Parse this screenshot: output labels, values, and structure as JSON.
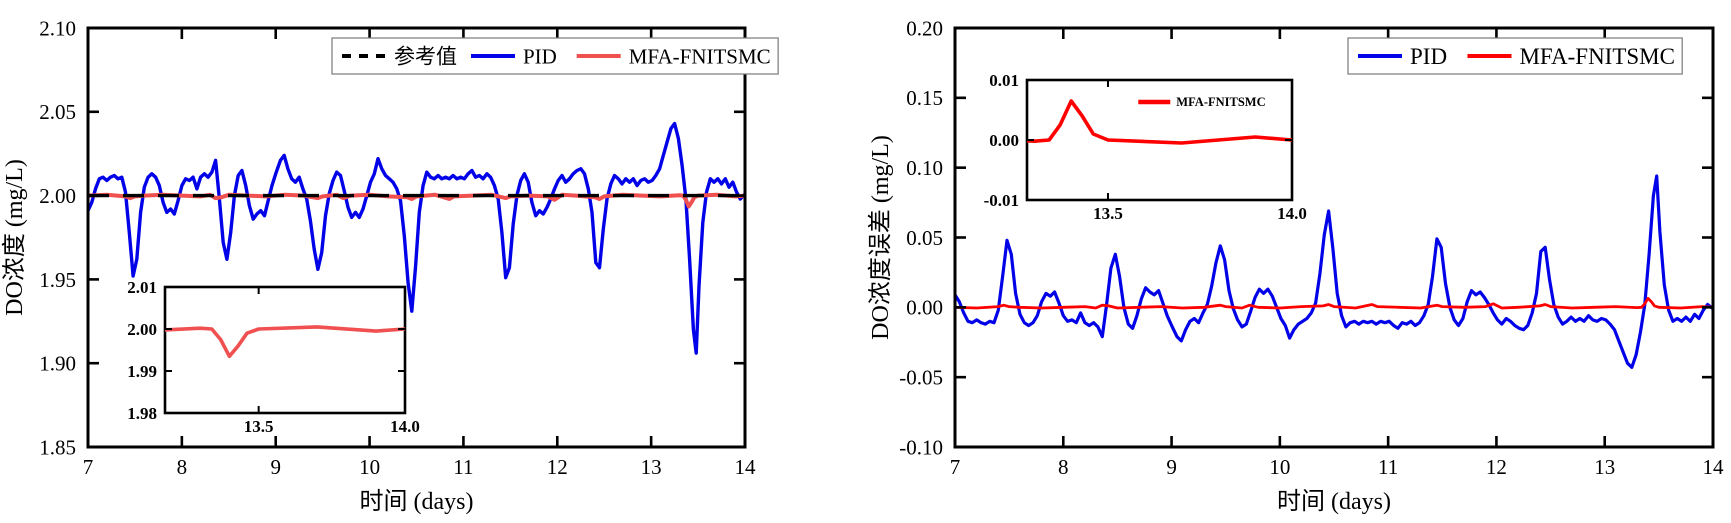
{
  "figure": {
    "background": "#ffffff"
  },
  "colors": {
    "pid_blue": "#0202e8",
    "mfa_red_left": "#f05050",
    "mfa_red_right": "#ff0000",
    "reference_black": "#000000"
  },
  "shared": {
    "t_pid": [
      7.0,
      7.04,
      7.08,
      7.12,
      7.16,
      7.2,
      7.24,
      7.28,
      7.32,
      7.36,
      7.4,
      7.44,
      7.48,
      7.52,
      7.56,
      7.6,
      7.64,
      7.68,
      7.72,
      7.76,
      7.8,
      7.84,
      7.88,
      7.92,
      7.96,
      8.0,
      8.04,
      8.08,
      8.12,
      8.16,
      8.2,
      8.24,
      8.28,
      8.32,
      8.36,
      8.4,
      8.44,
      8.48,
      8.52,
      8.56,
      8.6,
      8.64,
      8.68,
      8.72,
      8.76,
      8.8,
      8.84,
      8.88,
      8.92,
      8.96,
      9.0,
      9.05,
      9.09,
      9.13,
      9.17,
      9.21,
      9.25,
      9.29,
      9.33,
      9.37,
      9.41,
      9.45,
      9.49,
      9.53,
      9.57,
      9.61,
      9.65,
      9.69,
      9.73,
      9.77,
      9.81,
      9.85,
      9.89,
      9.93,
      9.97,
      10.01,
      10.05,
      10.09,
      10.13,
      10.17,
      10.21,
      10.25,
      10.29,
      10.33,
      10.37,
      10.41,
      10.45,
      10.49,
      10.53,
      10.57,
      10.61,
      10.65,
      10.69,
      10.73,
      10.77,
      10.81,
      10.85,
      10.89,
      10.93,
      10.97,
      11.01,
      11.05,
      11.09,
      11.13,
      11.17,
      11.21,
      11.25,
      11.29,
      11.33,
      11.37,
      11.41,
      11.45,
      11.49,
      11.53,
      11.57,
      11.61,
      11.65,
      11.69,
      11.73,
      11.77,
      11.81,
      11.85,
      11.89,
      11.93,
      11.97,
      12.01,
      12.05,
      12.09,
      12.13,
      12.17,
      12.21,
      12.25,
      12.29,
      12.33,
      12.37,
      12.41,
      12.45,
      12.49,
      12.53,
      12.57,
      12.61,
      12.65,
      12.69,
      12.73,
      12.77,
      12.81,
      12.85,
      12.89,
      12.93,
      12.97,
      13.01,
      13.05,
      13.09,
      13.13,
      13.17,
      13.21,
      13.25,
      13.29,
      13.33,
      13.37,
      13.41,
      13.45,
      13.48,
      13.51,
      13.55,
      13.59,
      13.63,
      13.67,
      13.71,
      13.75,
      13.79,
      13.83,
      13.87,
      13.91,
      13.95,
      14.0
    ],
    "t_mfa": [
      7.0,
      7.2,
      7.4,
      7.45,
      7.5,
      7.6,
      7.8,
      8.0,
      8.2,
      8.3,
      8.36,
      8.42,
      8.5,
      8.7,
      8.9,
      9.1,
      9.3,
      9.45,
      9.5,
      9.65,
      9.72,
      9.8,
      10.0,
      10.2,
      10.4,
      10.45,
      10.5,
      10.7,
      10.85,
      10.9,
      11.1,
      11.3,
      11.45,
      11.5,
      11.7,
      11.9,
      11.97,
      12.05,
      12.2,
      12.4,
      12.45,
      12.5,
      12.7,
      12.9,
      13.1,
      13.3,
      13.34,
      13.37,
      13.4,
      13.43,
      13.46,
      13.5,
      13.7,
      13.9,
      14.0
    ]
  },
  "chart_data": [
    {
      "type": "line",
      "title": "",
      "xlabel": "时间 (days)",
      "ylabel": "DO浓度 (mg/L)",
      "xlim": [
        7,
        14
      ],
      "ylim": [
        1.85,
        2.1
      ],
      "xticks": [
        7,
        8,
        9,
        10,
        11,
        12,
        13,
        14
      ],
      "xtick_labels": [
        "7",
        "8",
        "9",
        "10",
        "11",
        "12",
        "13",
        "14"
      ],
      "yticks": [
        1.85,
        1.9,
        1.95,
        2.0,
        2.05,
        2.1
      ],
      "ytick_labels": [
        "1.85",
        "1.90",
        "1.95",
        "2.00",
        "2.05",
        "2.10"
      ],
      "grid": false,
      "legend": {
        "position": "top-right-inside",
        "entries": [
          {
            "label": "参考值",
            "color": "#000000",
            "dash": true
          },
          {
            "label": "PID",
            "color": "#0202e8",
            "dash": false
          },
          {
            "label": "MFA-FNITSMC",
            "color": "#f05050",
            "dash": false
          }
        ]
      },
      "series": [
        {
          "name": "PID",
          "color": "#0202e8",
          "width": 3.4,
          "x_key": "t_pid",
          "y": [
            1.991,
            1.996,
            2.004,
            2.01,
            2.011,
            2.009,
            2.011,
            2.012,
            2.01,
            2.011,
            2.002,
            1.978,
            1.952,
            1.962,
            1.99,
            2.005,
            2.011,
            2.013,
            2.011,
            2.006,
            1.996,
            1.99,
            1.992,
            1.989,
            1.997,
            2.006,
            2.01,
            2.009,
            2.011,
            2.004,
            2.011,
            2.013,
            2.011,
            2.014,
            2.021,
            1.998,
            1.972,
            1.962,
            1.978,
            2.0,
            2.012,
            2.015,
            2.006,
            1.994,
            1.986,
            1.989,
            1.991,
            1.988,
            1.997,
            2.006,
            2.013,
            2.021,
            2.024,
            2.016,
            2.01,
            2.008,
            2.011,
            2.004,
            1.998,
            1.985,
            1.968,
            1.956,
            1.966,
            1.988,
            2.001,
            2.009,
            2.014,
            2.012,
            2.003,
            1.993,
            1.987,
            1.99,
            1.987,
            1.992,
            2.0,
            2.008,
            2.013,
            2.022,
            2.016,
            2.012,
            2.01,
            2.008,
            2.004,
            1.997,
            1.976,
            1.948,
            1.931,
            1.958,
            1.99,
            2.006,
            2.014,
            2.011,
            2.01,
            2.012,
            2.01,
            2.011,
            2.01,
            2.012,
            2.01,
            2.011,
            2.01,
            2.013,
            2.015,
            2.011,
            2.012,
            2.01,
            2.013,
            2.011,
            2.006,
            1.998,
            1.978,
            1.951,
            1.957,
            1.983,
            2.0,
            2.009,
            2.013,
            2.008,
            1.996,
            1.988,
            1.991,
            1.989,
            1.993,
            1.998,
            2.004,
            2.009,
            2.012,
            2.008,
            2.01,
            2.013,
            2.015,
            2.016,
            2.013,
            2.004,
            1.99,
            1.96,
            1.957,
            1.98,
            1.998,
            2.007,
            2.012,
            2.01,
            2.007,
            2.01,
            2.008,
            2.01,
            2.006,
            2.009,
            2.01,
            2.008,
            2.009,
            2.012,
            2.016,
            2.024,
            2.032,
            2.04,
            2.043,
            2.034,
            2.018,
            1.998,
            1.962,
            1.92,
            1.906,
            1.946,
            1.984,
            2.002,
            2.01,
            2.008,
            2.01,
            2.007,
            2.01,
            2.005,
            2.008,
            2.002,
            1.998,
            2.001
          ]
        },
        {
          "name": "MFA-FNITSMC",
          "color": "#f05050",
          "width": 4,
          "x_key": "t_mfa",
          "y": [
            2.0,
            2.0005,
            1.9995,
            1.9985,
            1.9995,
            2.0,
            2.0005,
            2.0,
            1.9995,
            2.0005,
            1.9985,
            1.999,
            2.0005,
            2.0,
            1.9995,
            2.0005,
            2.0,
            1.9985,
            1.9995,
            2.0005,
            1.9985,
            2.0,
            2.0005,
            1.9995,
            1.999,
            1.998,
            1.9995,
            2.0005,
            1.998,
            1.9995,
            2.0,
            2.0005,
            1.9985,
            1.9995,
            2.0,
            1.9995,
            1.9975,
            2.0005,
            2.0,
            1.999,
            1.998,
            1.9995,
            2.0005,
            2.0,
            1.9995,
            2.0002,
            2.0,
            1.9975,
            1.9935,
            1.996,
            1.999,
            2.0,
            2.0005,
            1.9995,
            2.0
          ]
        },
        {
          "name": "参考值",
          "color": "#000000",
          "width": 3.4,
          "dash": true,
          "constant": 2.0
        }
      ],
      "inset": {
        "xlim": [
          13.18,
          14.0
        ],
        "ylim": [
          1.98,
          2.01
        ],
        "xticks": [
          13.5,
          14.0
        ],
        "xtick_labels": [
          "13.5",
          "14.0"
        ],
        "yticks": [
          1.98,
          1.99,
          2.0,
          2.01
        ],
        "ytick_labels": [
          "1.98",
          "1.99",
          "2.00",
          "2.01"
        ],
        "series_index": 1
      }
    },
    {
      "type": "line",
      "title": "",
      "xlabel": "时间 (days)",
      "ylabel": "DO浓度误差 (mg/L)",
      "xlim": [
        7,
        14
      ],
      "ylim": [
        -0.1,
        0.2
      ],
      "xticks": [
        7,
        8,
        9,
        10,
        11,
        12,
        13,
        14
      ],
      "xtick_labels": [
        "7",
        "8",
        "9",
        "10",
        "11",
        "12",
        "13",
        "14"
      ],
      "yticks": [
        -0.1,
        -0.05,
        0.0,
        0.05,
        0.1,
        0.15,
        0.2
      ],
      "ytick_labels": [
        "-0.10",
        "-0.05",
        "0.00",
        "0.05",
        "0.10",
        "0.15",
        "0.20"
      ],
      "grid": false,
      "legend": {
        "position": "top-right-inside",
        "entries": [
          {
            "label": "PID",
            "color": "#0202e8",
            "dash": false
          },
          {
            "label": "MFA-FNITSMC",
            "color": "#ff0000",
            "dash": false
          }
        ]
      },
      "series": [
        {
          "name": "PID",
          "color": "#0202e8",
          "width": 3.2,
          "x_key": "t_pid",
          "y": [
            0.009,
            0.004,
            -0.004,
            -0.01,
            -0.011,
            -0.009,
            -0.011,
            -0.012,
            -0.01,
            -0.011,
            -0.002,
            0.022,
            0.048,
            0.038,
            0.01,
            -0.005,
            -0.011,
            -0.013,
            -0.011,
            -0.006,
            0.004,
            0.01,
            0.008,
            0.011,
            0.003,
            -0.006,
            -0.01,
            -0.009,
            -0.011,
            -0.004,
            -0.011,
            -0.013,
            -0.011,
            -0.014,
            -0.021,
            0.002,
            0.028,
            0.038,
            0.022,
            0.0,
            -0.012,
            -0.015,
            -0.006,
            0.006,
            0.014,
            0.011,
            0.009,
            0.012,
            0.003,
            -0.006,
            -0.013,
            -0.021,
            -0.024,
            -0.016,
            -0.01,
            -0.008,
            -0.011,
            -0.004,
            0.002,
            0.015,
            0.032,
            0.044,
            0.034,
            0.012,
            -0.001,
            -0.009,
            -0.014,
            -0.012,
            -0.003,
            0.007,
            0.013,
            0.01,
            0.013,
            0.008,
            0.0,
            -0.008,
            -0.013,
            -0.022,
            -0.016,
            -0.012,
            -0.01,
            -0.008,
            -0.004,
            0.003,
            0.024,
            0.052,
            0.069,
            0.042,
            0.01,
            -0.006,
            -0.014,
            -0.011,
            -0.01,
            -0.012,
            -0.01,
            -0.011,
            -0.01,
            -0.012,
            -0.01,
            -0.011,
            -0.01,
            -0.013,
            -0.015,
            -0.011,
            -0.012,
            -0.01,
            -0.013,
            -0.011,
            -0.006,
            0.002,
            0.022,
            0.049,
            0.043,
            0.017,
            0.0,
            -0.009,
            -0.013,
            -0.008,
            0.004,
            0.012,
            0.009,
            0.011,
            0.007,
            0.002,
            -0.004,
            -0.009,
            -0.012,
            -0.008,
            -0.01,
            -0.013,
            -0.015,
            -0.016,
            -0.013,
            -0.004,
            0.01,
            0.04,
            0.043,
            0.02,
            0.002,
            -0.007,
            -0.012,
            -0.01,
            -0.007,
            -0.01,
            -0.008,
            -0.01,
            -0.006,
            -0.009,
            -0.01,
            -0.008,
            -0.009,
            -0.012,
            -0.016,
            -0.024,
            -0.032,
            -0.04,
            -0.043,
            -0.034,
            -0.018,
            0.002,
            0.038,
            0.08,
            0.094,
            0.054,
            0.016,
            -0.002,
            -0.01,
            -0.008,
            -0.01,
            -0.007,
            -0.01,
            -0.005,
            -0.008,
            -0.002,
            0.002,
            -0.001
          ]
        },
        {
          "name": "MFA-FNITSMC",
          "color": "#ff0000",
          "width": 2.8,
          "x_key": "t_mfa",
          "y": [
            0.0,
            -0.0005,
            0.0005,
            0.0015,
            0.0005,
            0.0,
            -0.0005,
            0.0,
            0.0005,
            -0.0005,
            0.0015,
            0.001,
            -0.0005,
            0.0,
            0.0005,
            -0.0005,
            0.0,
            0.0015,
            0.0005,
            -0.0005,
            0.0015,
            0.0,
            -0.0005,
            0.0005,
            0.001,
            0.002,
            0.0005,
            -0.0005,
            0.002,
            0.0005,
            0.0,
            -0.0005,
            0.0015,
            0.0005,
            0.0,
            0.0005,
            0.0025,
            -0.0005,
            0.0,
            0.001,
            0.002,
            0.0005,
            -0.0005,
            0.0,
            0.0005,
            -0.0002,
            0.0,
            0.0025,
            0.0065,
            0.004,
            0.001,
            0.0,
            -0.0005,
            0.0005,
            0.0
          ]
        }
      ],
      "inset": {
        "xlim": [
          13.28,
          14.0
        ],
        "ylim": [
          -0.01,
          0.01
        ],
        "xticks": [
          13.5,
          14.0
        ],
        "xtick_labels": [
          "13.5",
          "14.0"
        ],
        "yticks": [
          -0.01,
          0.0,
          0.01
        ],
        "ytick_labels": [
          "-0.01",
          "0.00",
          "0.01"
        ],
        "series_index": 1,
        "legend_label": "MFA-FNITSMC"
      }
    }
  ]
}
